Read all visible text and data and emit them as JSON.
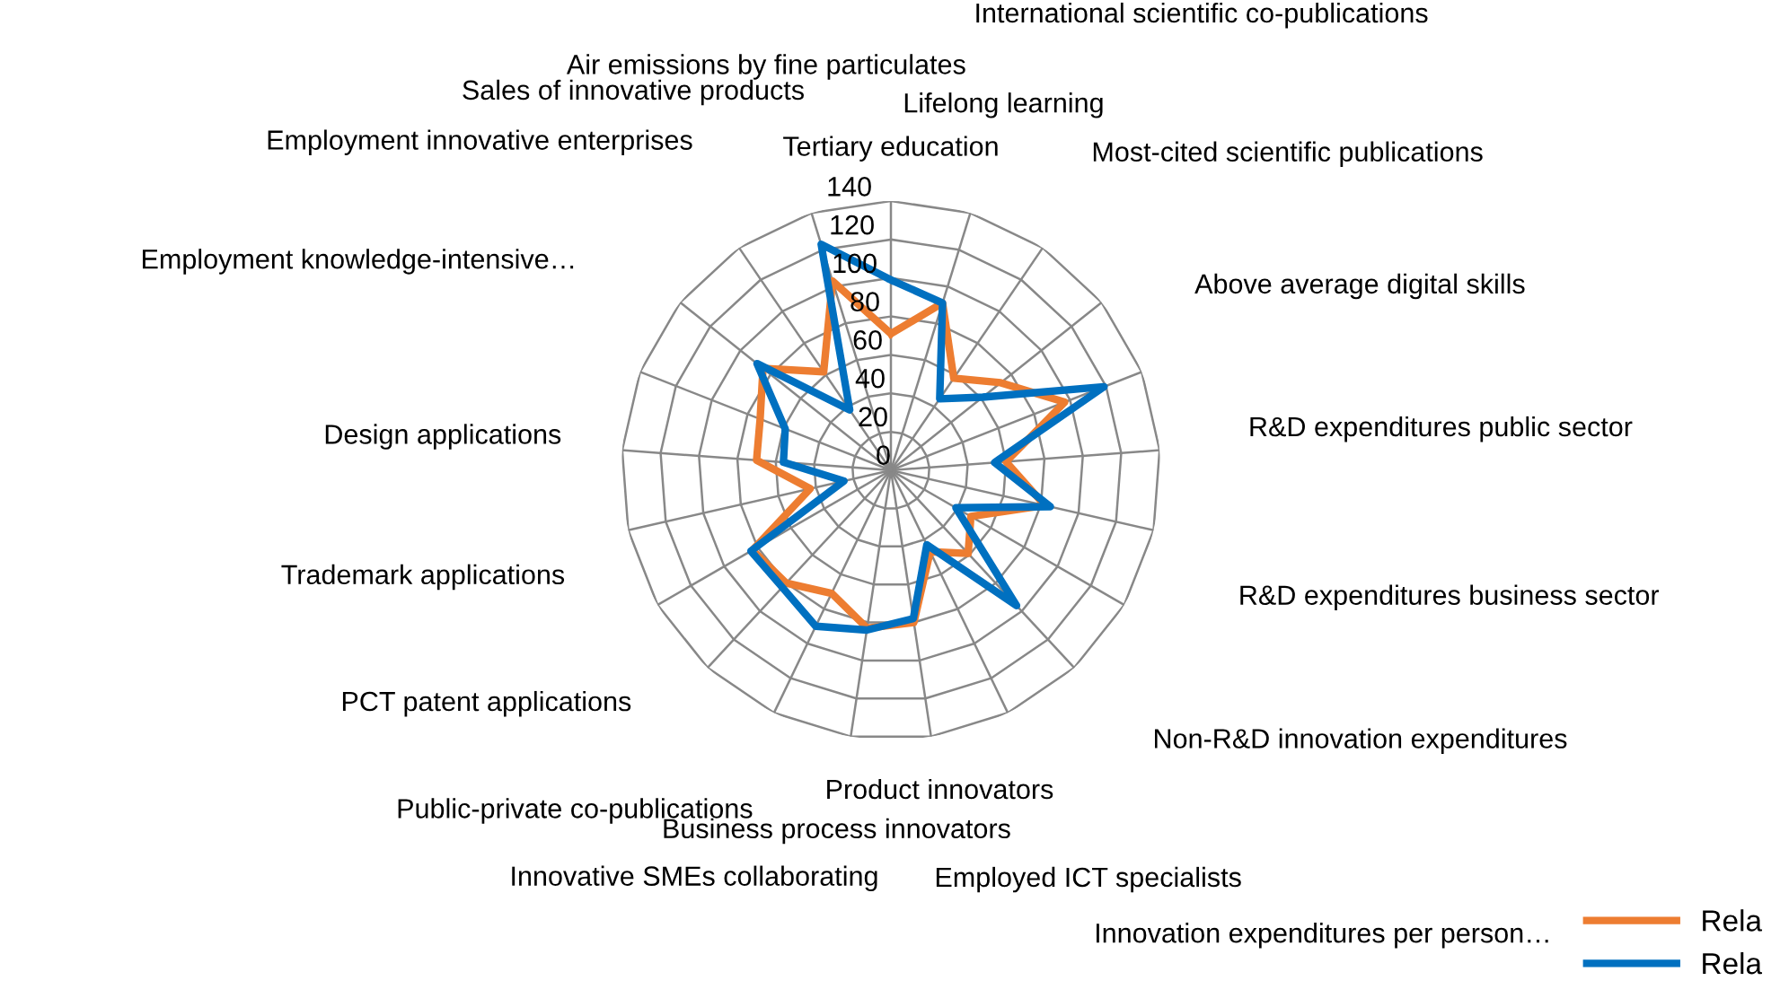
{
  "chart_data": {
    "type": "radar",
    "categories": [
      "Tertiary education",
      "Lifelong learning",
      "International scientific co-publications",
      "Most-cited scientific publications",
      "Above average digital skills",
      "R&D expenditures public sector",
      "R&D expenditures business sector",
      "Non-R&D innovation expenditures",
      "Innovation expenditures per person…",
      "Employed ICT specialists",
      "Product innovators",
      "Business process innovators",
      "Innovative SMEs collaborating",
      "Public-private co-publications",
      "PCT patent applications",
      "Trademark applications",
      "Design applications",
      "Employment knowledge-intensive…",
      "Employment innovative enterprises",
      "Sales of innovative products",
      "Air emissions by fine particulates"
    ],
    "series": [
      {
        "name": "Rela",
        "color": "#ed7d31",
        "values": [
          71,
          91,
          58,
          73,
          97,
          60,
          82,
          48,
          59,
          47,
          80,
          83,
          71,
          80,
          83,
          43,
          70,
          73,
          85,
          62,
          103
        ]
      },
      {
        "name": "Rela",
        "color": "#0070c0",
        "values": [
          99,
          91,
          45,
          61,
          119,
          54,
          85,
          39,
          96,
          43,
          78,
          84,
          90,
          83,
          84,
          25,
          56,
          59,
          89,
          38,
          123
        ]
      }
    ],
    "ylim": [
      0,
      140
    ],
    "yticks": [
      0,
      20,
      40,
      60,
      80,
      100,
      120,
      140
    ],
    "grid": true,
    "legend": "bottom right"
  }
}
